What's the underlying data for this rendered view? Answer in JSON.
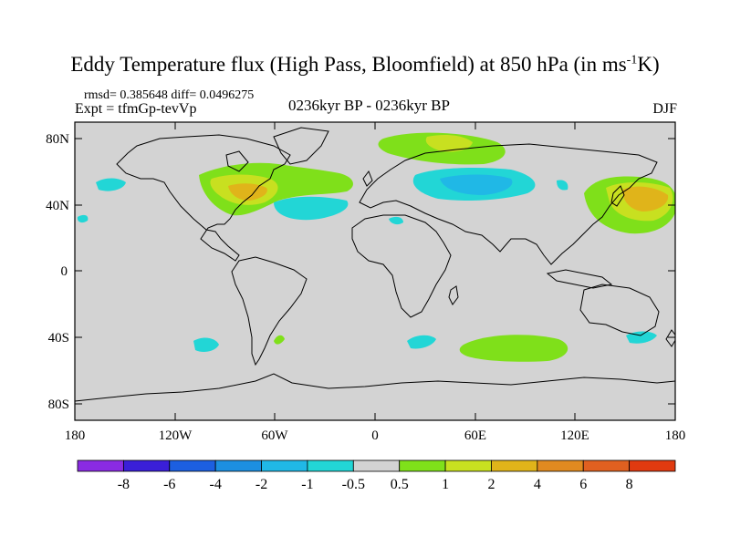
{
  "title": "Eddy Temperature flux (High Pass, Bloomfield) at 850 hPa (in ms",
  "title_sup": "-1",
  "title_tail": "K)",
  "stats": "rmsd= 0.385648 diff= 0.0496275",
  "expt": "Expt = tfmGp-tevVp",
  "center_label": "0236kyr BP - 0236kyr BP",
  "season": "DJF",
  "lat_labels": [
    "80N",
    "40N",
    "0",
    "40S",
    "80S"
  ],
  "lon_labels": [
    "180",
    "120W",
    "60W",
    "0",
    "60E",
    "120E",
    "180"
  ],
  "colorbar": {
    "labels": [
      "-8",
      "-6",
      "-4",
      "-2",
      "-1",
      "-0.5",
      "0.5",
      "1",
      "2",
      "4",
      "6",
      "8"
    ],
    "colors": [
      "#8a2be2",
      "#3a1fd8",
      "#1c5fe0",
      "#1c8fe0",
      "#20b8e6",
      "#22d6d6",
      "#d3d3d3",
      "#7fe01a",
      "#c8e020",
      "#e0b41a",
      "#e08a20",
      "#e06020",
      "#e03a10"
    ]
  },
  "colors": {
    "land_background": "#d3d3d3",
    "coast": "#000000"
  }
}
